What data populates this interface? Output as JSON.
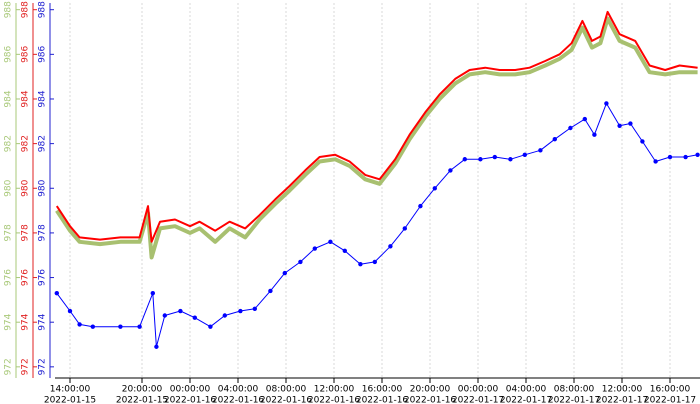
{
  "chart_data": {
    "type": "line",
    "xlim": [
      12.75,
      66.5
    ],
    "xticks": [
      {
        "value": 14,
        "label": "14:00:00"
      },
      {
        "value": 20,
        "label": "20:00:00"
      },
      {
        "value": 24,
        "label": "00:00:00"
      },
      {
        "value": 28,
        "label": "04:00:00"
      },
      {
        "value": 32,
        "label": "08:00:00"
      },
      {
        "value": 36,
        "label": "12:00:00"
      },
      {
        "value": 40,
        "label": "16:00:00"
      },
      {
        "value": 44,
        "label": "20:00:00"
      },
      {
        "value": 48,
        "label": "00:00:00"
      },
      {
        "value": 52,
        "label": "04:00:00"
      },
      {
        "value": 56,
        "label": "08:00:00"
      },
      {
        "value": 60,
        "label": "12:00:00"
      },
      {
        "value": 64,
        "label": "16:00:00"
      }
    ],
    "xtick_dates": [
      "2022-01-15",
      "2022-01-15",
      "2022-01-16",
      "2022-01-16",
      "2022-01-16",
      "2022-01-16",
      "2022-01-16",
      "2022-01-16",
      "2022-01-17",
      "2022-01-17",
      "2022-01-17",
      "2022-01-17",
      "2022-01-17"
    ],
    "grid": true,
    "axes": [
      {
        "color": "#a8c878",
        "ylim": [
          971.5,
          988.3
        ],
        "yticks": [
          972,
          974,
          976,
          978,
          980,
          982,
          984,
          986,
          988
        ]
      },
      {
        "color": "#e02020",
        "ylim": [
          971.5,
          988.3
        ],
        "yticks": [
          972,
          974,
          976,
          978,
          980,
          982,
          984,
          986,
          988
        ]
      },
      {
        "color": "#2020d0",
        "ylim": [
          971.5,
          988.3
        ],
        "yticks": [
          972,
          974,
          976,
          978,
          980,
          982,
          984,
          986,
          988
        ]
      }
    ],
    "series": [
      {
        "color": "#a8c070",
        "axis": 0,
        "width": 4,
        "x": [
          12.9,
          14,
          14.8,
          16.5,
          18.2,
          19.8,
          20.5,
          20.8,
          21.5,
          22.75,
          24,
          24.8,
          26.1,
          27.3,
          28.6,
          29.8,
          31.1,
          32.3,
          33.6,
          34.8,
          36.1,
          37.3,
          38.6,
          39.8,
          41.1,
          42.3,
          43.6,
          44.8,
          46.1,
          47.3,
          48.6,
          49.8,
          51.1,
          52.3,
          53.6,
          54.8,
          55.8,
          56.7,
          57.5,
          58.2,
          58.8,
          59.8,
          61.1,
          62.3,
          63.6,
          64.8,
          66.3
        ],
        "values": [
          979.0,
          978.1,
          977.6,
          977.5,
          977.6,
          977.6,
          978.9,
          976.9,
          978.2,
          978.3,
          978.0,
          978.2,
          977.6,
          978.2,
          977.8,
          978.6,
          979.3,
          979.9,
          980.6,
          981.2,
          981.3,
          981.0,
          980.4,
          980.2,
          981.1,
          982.2,
          983.2,
          984.0,
          984.7,
          985.1,
          985.2,
          985.1,
          985.1,
          985.2,
          985.5,
          985.8,
          986.2,
          987.2,
          986.3,
          986.5,
          987.6,
          986.6,
          986.3,
          985.2,
          985.1,
          985.2,
          985.2
        ]
      },
      {
        "color": "#ff0000",
        "axis": 1,
        "width": 2,
        "x": [
          12.9,
          14,
          14.8,
          16.5,
          18.2,
          19.8,
          20.5,
          20.8,
          21.5,
          22.75,
          24,
          24.8,
          26.1,
          27.3,
          28.6,
          29.8,
          31.1,
          32.3,
          33.6,
          34.8,
          36.1,
          37.3,
          38.6,
          39.8,
          41.1,
          42.3,
          43.6,
          44.8,
          46.1,
          47.3,
          48.6,
          49.8,
          51.1,
          52.3,
          53.6,
          54.8,
          55.8,
          56.7,
          57.5,
          58.2,
          58.8,
          59.8,
          61.1,
          62.3,
          63.6,
          64.8,
          66.3
        ],
        "values": [
          979.2,
          978.3,
          977.8,
          977.7,
          977.8,
          977.8,
          979.2,
          977.6,
          978.5,
          978.6,
          978.3,
          978.5,
          978.1,
          978.5,
          978.2,
          978.8,
          979.5,
          980.1,
          980.8,
          981.4,
          981.5,
          981.2,
          980.6,
          980.4,
          981.3,
          982.4,
          983.4,
          984.2,
          984.9,
          985.3,
          985.4,
          985.3,
          985.3,
          985.4,
          985.7,
          986.0,
          986.5,
          987.5,
          986.6,
          986.8,
          987.9,
          986.9,
          986.6,
          985.5,
          985.3,
          985.5,
          985.4
        ]
      },
      {
        "color": "#0000ff",
        "axis": 2,
        "width": 1,
        "markers": true,
        "x": [
          12.9,
          14,
          14.8,
          15.9,
          18.2,
          19.8,
          20.9,
          21.2,
          21.9,
          23.2,
          24.4,
          25.7,
          26.9,
          28.2,
          29.4,
          30.7,
          31.9,
          33.2,
          34.4,
          35.7,
          36.9,
          38.2,
          39.4,
          40.7,
          41.9,
          43.2,
          44.4,
          45.7,
          46.9,
          48.2,
          49.4,
          50.7,
          51.9,
          53.2,
          54.4,
          55.7,
          56.9,
          57.7,
          58.7,
          59.8,
          60.7,
          61.7,
          62.8,
          64,
          65.3,
          66.3
        ],
        "values": [
          975.3,
          974.5,
          973.9,
          973.8,
          973.8,
          973.8,
          975.3,
          972.9,
          974.3,
          974.5,
          974.2,
          973.8,
          974.3,
          974.5,
          974.6,
          975.4,
          976.2,
          976.7,
          977.3,
          977.6,
          977.2,
          976.6,
          976.7,
          977.4,
          978.2,
          979.2,
          980.0,
          980.8,
          981.3,
          981.3,
          981.4,
          981.3,
          981.5,
          981.7,
          982.2,
          982.7,
          983.1,
          982.4,
          983.8,
          982.8,
          982.9,
          982.1,
          981.2,
          981.4,
          981.4,
          981.5
        ]
      }
    ]
  }
}
